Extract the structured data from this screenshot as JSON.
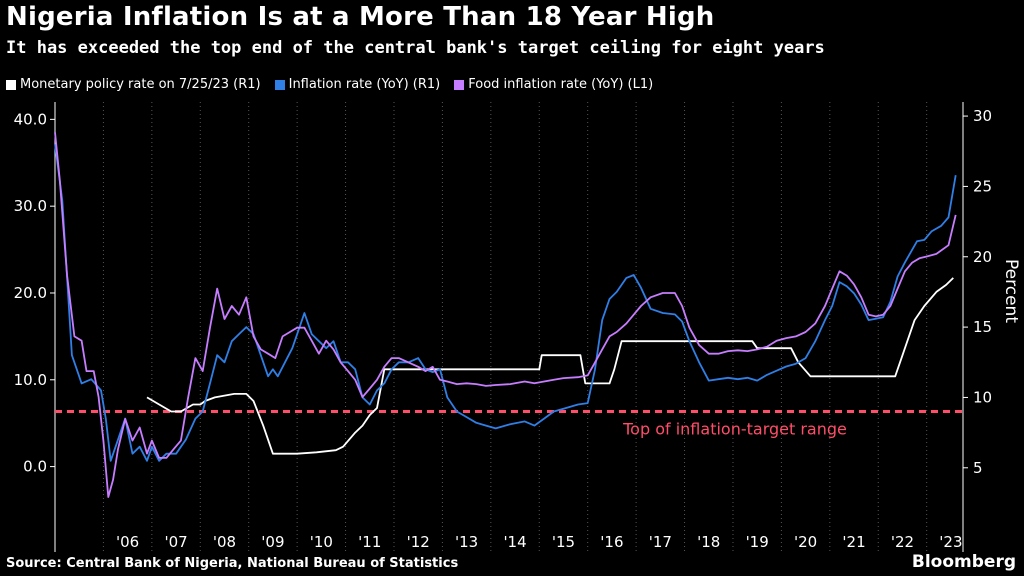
{
  "header": {
    "title": "Nigeria Inflation Is at a More Than 18 Year High",
    "subtitle": "It has exceeded the top end of the central bank's target ceiling for eight years"
  },
  "footer": {
    "source": "Source: Central Bank of Nigeria, National Bureau of Statistics",
    "brand": "Bloomberg"
  },
  "colors": {
    "background": "#000000",
    "policy": "#ffffff",
    "inflation": "#2f7fe6",
    "food": "#c77dff",
    "target": "#ff4d6a",
    "grid": "#555555"
  },
  "chart_data": {
    "type": "line",
    "right_axis_label": "Percent",
    "left_axis": {
      "range": [
        -5,
        42
      ],
      "ticks": [
        "40.0",
        "30.0",
        "20.0",
        "10.0",
        "0.0"
      ]
    },
    "right_axis": {
      "range": [
        2,
        31
      ],
      "ticks": [
        "30",
        "25",
        "20",
        "15",
        "10",
        "5"
      ]
    },
    "x_axis": {
      "range": [
        2005.0,
        2023.75
      ],
      "tick_labels": [
        "'06",
        "'07",
        "'08",
        "'09",
        "'10",
        "'11",
        "'12",
        "'13",
        "'14",
        "'15",
        "'16",
        "'17",
        "'18",
        "'19",
        "'20",
        "'21",
        "'22",
        "'23"
      ]
    },
    "grid": "vertical dotted",
    "legend_placement": "top-left",
    "reference_line": {
      "label": "Top of inflation-target range",
      "value": 9,
      "axis": "right"
    },
    "series": [
      {
        "name": "Monetary policy rate on 7/25/23 (R1)",
        "axis": "right",
        "points": [
          [
            2006.9,
            10
          ],
          [
            2007.4,
            9
          ],
          [
            2007.6,
            9
          ],
          [
            2007.85,
            9.5
          ],
          [
            2008.0,
            9.5
          ],
          [
            2008.1,
            9.75
          ],
          [
            2008.3,
            10
          ],
          [
            2008.7,
            10.25
          ],
          [
            2008.95,
            10.25
          ],
          [
            2009.1,
            9.75
          ],
          [
            2009.3,
            8
          ],
          [
            2009.5,
            6
          ],
          [
            2010.0,
            6
          ],
          [
            2010.4,
            6.1
          ],
          [
            2010.8,
            6.25
          ],
          [
            2010.95,
            6.5
          ],
          [
            2011.2,
            7.5
          ],
          [
            2011.35,
            8
          ],
          [
            2011.5,
            8.75
          ],
          [
            2011.65,
            9.25
          ],
          [
            2011.8,
            12
          ],
          [
            2012.0,
            12
          ],
          [
            2015.0,
            12
          ],
          [
            2015.05,
            13
          ],
          [
            2015.85,
            13
          ],
          [
            2015.95,
            11
          ],
          [
            2016.45,
            11
          ],
          [
            2016.55,
            12
          ],
          [
            2016.7,
            14
          ],
          [
            2019.4,
            14
          ],
          [
            2019.5,
            13.5
          ],
          [
            2020.2,
            13.5
          ],
          [
            2020.35,
            12.5
          ],
          [
            2020.6,
            11.5
          ],
          [
            2022.35,
            11.5
          ],
          [
            2022.5,
            13
          ],
          [
            2022.75,
            15.5
          ],
          [
            2022.95,
            16.5
          ],
          [
            2023.2,
            17.5
          ],
          [
            2023.4,
            18
          ],
          [
            2023.55,
            18.5
          ]
        ]
      },
      {
        "name": "Inflation rate (YoY) (R1)",
        "axis": "right",
        "points": [
          [
            2005.0,
            28
          ],
          [
            2005.15,
            24
          ],
          [
            2005.35,
            13
          ],
          [
            2005.55,
            11
          ],
          [
            2005.75,
            11.3
          ],
          [
            2005.95,
            10.5
          ],
          [
            2006.05,
            8.5
          ],
          [
            2006.15,
            5.5
          ],
          [
            2006.3,
            7
          ],
          [
            2006.45,
            8.5
          ],
          [
            2006.6,
            6
          ],
          [
            2006.75,
            6.5
          ],
          [
            2006.9,
            5.5
          ],
          [
            2007.0,
            6.5
          ],
          [
            2007.15,
            5.5
          ],
          [
            2007.3,
            6
          ],
          [
            2007.5,
            6
          ],
          [
            2007.7,
            7
          ],
          [
            2007.9,
            8.5
          ],
          [
            2008.05,
            9
          ],
          [
            2008.2,
            11
          ],
          [
            2008.35,
            13
          ],
          [
            2008.5,
            12.5
          ],
          [
            2008.65,
            14
          ],
          [
            2008.8,
            14.5
          ],
          [
            2008.95,
            15
          ],
          [
            2009.1,
            14.5
          ],
          [
            2009.25,
            13
          ],
          [
            2009.4,
            11.5
          ],
          [
            2009.5,
            12
          ],
          [
            2009.6,
            11.5
          ],
          [
            2009.75,
            12.5
          ],
          [
            2009.9,
            13.5
          ],
          [
            2010.05,
            15
          ],
          [
            2010.15,
            16
          ],
          [
            2010.3,
            14.5
          ],
          [
            2010.45,
            14
          ],
          [
            2010.6,
            13.5
          ],
          [
            2010.75,
            14
          ],
          [
            2010.9,
            12.5
          ],
          [
            2011.05,
            12.5
          ],
          [
            2011.2,
            12
          ],
          [
            2011.35,
            10
          ],
          [
            2011.5,
            9.5
          ],
          [
            2011.65,
            10.5
          ],
          [
            2011.8,
            11
          ],
          [
            2011.95,
            12
          ],
          [
            2012.1,
            12.5
          ],
          [
            2012.3,
            12.5
          ],
          [
            2012.5,
            12.8
          ],
          [
            2012.65,
            12
          ],
          [
            2012.8,
            11.8
          ],
          [
            2012.95,
            12
          ],
          [
            2013.1,
            10
          ],
          [
            2013.3,
            9
          ],
          [
            2013.5,
            8.6
          ],
          [
            2013.7,
            8.2
          ],
          [
            2013.9,
            8
          ],
          [
            2014.1,
            7.8
          ],
          [
            2014.4,
            8.1
          ],
          [
            2014.7,
            8.3
          ],
          [
            2014.9,
            8
          ],
          [
            2015.1,
            8.5
          ],
          [
            2015.3,
            9
          ],
          [
            2015.5,
            9.2
          ],
          [
            2015.8,
            9.5
          ],
          [
            2016.0,
            9.6
          ],
          [
            2016.15,
            12
          ],
          [
            2016.3,
            15.5
          ],
          [
            2016.45,
            17
          ],
          [
            2016.6,
            17.5
          ],
          [
            2016.8,
            18.5
          ],
          [
            2016.95,
            18.7
          ],
          [
            2017.1,
            17.8
          ],
          [
            2017.3,
            16.3
          ],
          [
            2017.55,
            16
          ],
          [
            2017.8,
            15.9
          ],
          [
            2017.95,
            15.4
          ],
          [
            2018.1,
            14
          ],
          [
            2018.3,
            12.5
          ],
          [
            2018.5,
            11.2
          ],
          [
            2018.7,
            11.3
          ],
          [
            2018.9,
            11.4
          ],
          [
            2019.1,
            11.3
          ],
          [
            2019.3,
            11.4
          ],
          [
            2019.5,
            11.2
          ],
          [
            2019.7,
            11.6
          ],
          [
            2019.9,
            11.9
          ],
          [
            2020.1,
            12.2
          ],
          [
            2020.3,
            12.4
          ],
          [
            2020.5,
            12.8
          ],
          [
            2020.7,
            14
          ],
          [
            2020.9,
            15.5
          ],
          [
            2021.05,
            16.5
          ],
          [
            2021.2,
            18.2
          ],
          [
            2021.35,
            17.9
          ],
          [
            2021.5,
            17.4
          ],
          [
            2021.65,
            16.6
          ],
          [
            2021.8,
            15.5
          ],
          [
            2021.95,
            15.6
          ],
          [
            2022.1,
            15.7
          ],
          [
            2022.25,
            16.8
          ],
          [
            2022.4,
            18.6
          ],
          [
            2022.55,
            19.6
          ],
          [
            2022.7,
            20.5
          ],
          [
            2022.8,
            21.1
          ],
          [
            2022.95,
            21.2
          ],
          [
            2023.1,
            21.8
          ],
          [
            2023.3,
            22.2
          ],
          [
            2023.45,
            22.8
          ],
          [
            2023.6,
            25.8
          ]
        ]
      },
      {
        "name": "Food inflation rate (YoY) (L1)",
        "axis": "left",
        "points": [
          [
            2005.0,
            38.5
          ],
          [
            2005.1,
            33
          ],
          [
            2005.25,
            22
          ],
          [
            2005.4,
            15
          ],
          [
            2005.55,
            14.5
          ],
          [
            2005.65,
            11
          ],
          [
            2005.8,
            11
          ],
          [
            2005.9,
            8
          ],
          [
            2006.0,
            3
          ],
          [
            2006.1,
            -3.5
          ],
          [
            2006.2,
            -1.5
          ],
          [
            2006.3,
            2
          ],
          [
            2006.45,
            5.5
          ],
          [
            2006.6,
            3
          ],
          [
            2006.75,
            4.5
          ],
          [
            2006.9,
            1.5
          ],
          [
            2007.0,
            3
          ],
          [
            2007.15,
            1
          ],
          [
            2007.3,
            1
          ],
          [
            2007.45,
            2
          ],
          [
            2007.6,
            3
          ],
          [
            2007.75,
            8
          ],
          [
            2007.9,
            12.5
          ],
          [
            2008.05,
            11
          ],
          [
            2008.2,
            16
          ],
          [
            2008.35,
            20.5
          ],
          [
            2008.5,
            17
          ],
          [
            2008.65,
            18.5
          ],
          [
            2008.8,
            17.5
          ],
          [
            2008.95,
            19.5
          ],
          [
            2009.1,
            15
          ],
          [
            2009.25,
            13.5
          ],
          [
            2009.4,
            13
          ],
          [
            2009.55,
            12.5
          ],
          [
            2009.7,
            15
          ],
          [
            2009.85,
            15.5
          ],
          [
            2010.0,
            16
          ],
          [
            2010.15,
            16
          ],
          [
            2010.3,
            14.5
          ],
          [
            2010.45,
            13
          ],
          [
            2010.6,
            14.5
          ],
          [
            2010.75,
            13.5
          ],
          [
            2010.9,
            12
          ],
          [
            2011.05,
            11
          ],
          [
            2011.2,
            10
          ],
          [
            2011.35,
            8
          ],
          [
            2011.5,
            9
          ],
          [
            2011.65,
            10
          ],
          [
            2011.8,
            11.5
          ],
          [
            2011.95,
            12.5
          ],
          [
            2012.1,
            12.5
          ],
          [
            2012.3,
            12
          ],
          [
            2012.5,
            11.5
          ],
          [
            2012.65,
            11
          ],
          [
            2012.8,
            11.5
          ],
          [
            2012.95,
            10
          ],
          [
            2013.1,
            9.8
          ],
          [
            2013.3,
            9.5
          ],
          [
            2013.5,
            9.6
          ],
          [
            2013.7,
            9.5
          ],
          [
            2013.9,
            9.3
          ],
          [
            2014.1,
            9.4
          ],
          [
            2014.4,
            9.5
          ],
          [
            2014.7,
            9.8
          ],
          [
            2014.9,
            9.6
          ],
          [
            2015.1,
            9.8
          ],
          [
            2015.3,
            10
          ],
          [
            2015.5,
            10.2
          ],
          [
            2015.8,
            10.3
          ],
          [
            2016.0,
            10.5
          ],
          [
            2016.15,
            12
          ],
          [
            2016.3,
            13.5
          ],
          [
            2016.45,
            15
          ],
          [
            2016.6,
            15.5
          ],
          [
            2016.8,
            16.5
          ],
          [
            2016.95,
            17.5
          ],
          [
            2017.1,
            18.5
          ],
          [
            2017.3,
            19.5
          ],
          [
            2017.55,
            20
          ],
          [
            2017.8,
            20
          ],
          [
            2017.95,
            18.5
          ],
          [
            2018.1,
            16
          ],
          [
            2018.3,
            14
          ],
          [
            2018.5,
            13
          ],
          [
            2018.7,
            13
          ],
          [
            2018.9,
            13.3
          ],
          [
            2019.1,
            13.4
          ],
          [
            2019.3,
            13.3
          ],
          [
            2019.5,
            13.5
          ],
          [
            2019.7,
            13.8
          ],
          [
            2019.9,
            14.5
          ],
          [
            2020.1,
            14.8
          ],
          [
            2020.3,
            15
          ],
          [
            2020.5,
            15.5
          ],
          [
            2020.7,
            16.5
          ],
          [
            2020.9,
            18.5
          ],
          [
            2021.05,
            20.5
          ],
          [
            2021.2,
            22.5
          ],
          [
            2021.35,
            22
          ],
          [
            2021.5,
            21
          ],
          [
            2021.65,
            19.5
          ],
          [
            2021.8,
            17.5
          ],
          [
            2021.95,
            17.3
          ],
          [
            2022.1,
            17.5
          ],
          [
            2022.25,
            18.5
          ],
          [
            2022.4,
            20.5
          ],
          [
            2022.55,
            22.5
          ],
          [
            2022.7,
            23.5
          ],
          [
            2022.85,
            24
          ],
          [
            2023.0,
            24.2
          ],
          [
            2023.2,
            24.5
          ],
          [
            2023.45,
            25.5
          ],
          [
            2023.6,
            29
          ]
        ]
      }
    ]
  }
}
